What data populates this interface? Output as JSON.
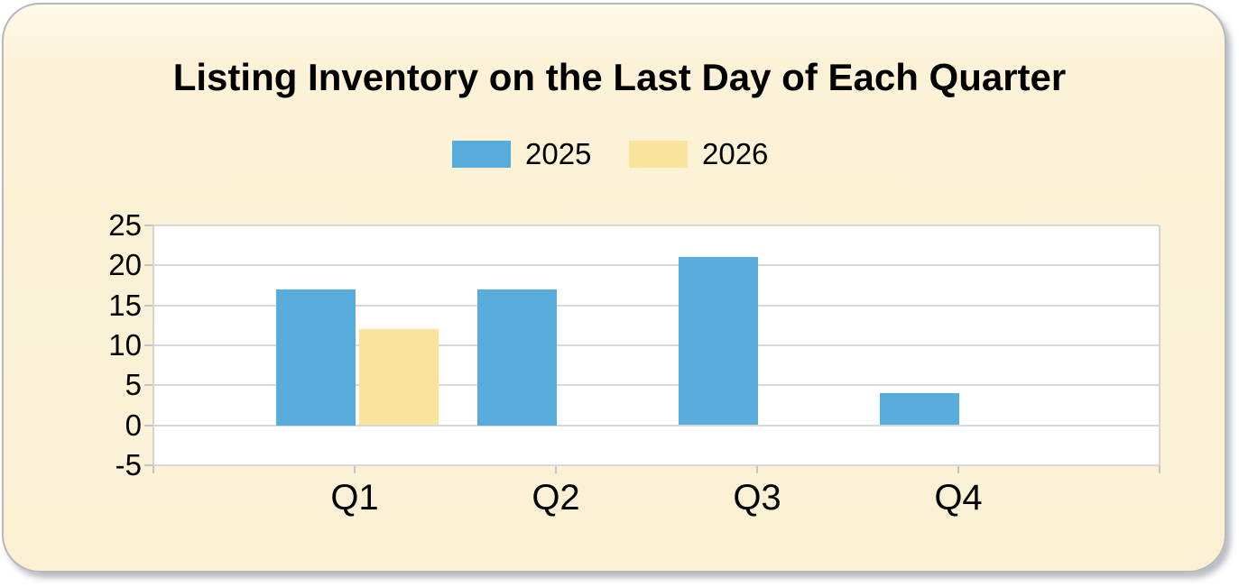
{
  "page": {
    "background": "#ffffff"
  },
  "card": {
    "background": "#fbf2d7",
    "border_color": "#b7b7bc"
  },
  "chart_data": {
    "type": "bar",
    "title": "Listing Inventory on the Last Day of Each Quarter",
    "categories": [
      "Q1",
      "Q2",
      "Q3",
      "Q4"
    ],
    "series": [
      {
        "name": "2025",
        "color": "#58ACDC",
        "values": [
          17,
          17,
          21,
          4
        ]
      },
      {
        "name": "2026",
        "color": "#FAE49C",
        "values": [
          12,
          null,
          null,
          null
        ]
      }
    ],
    "xlabel": "",
    "ylabel": "",
    "ylim": [
      -5,
      25
    ],
    "ytick_step": 5,
    "yticks": [
      25,
      20,
      15,
      10,
      5,
      0,
      -5
    ],
    "grid": true,
    "gridline_color": "#d8d8d8",
    "plot_background": "#ffffff",
    "legend_position": "top"
  }
}
